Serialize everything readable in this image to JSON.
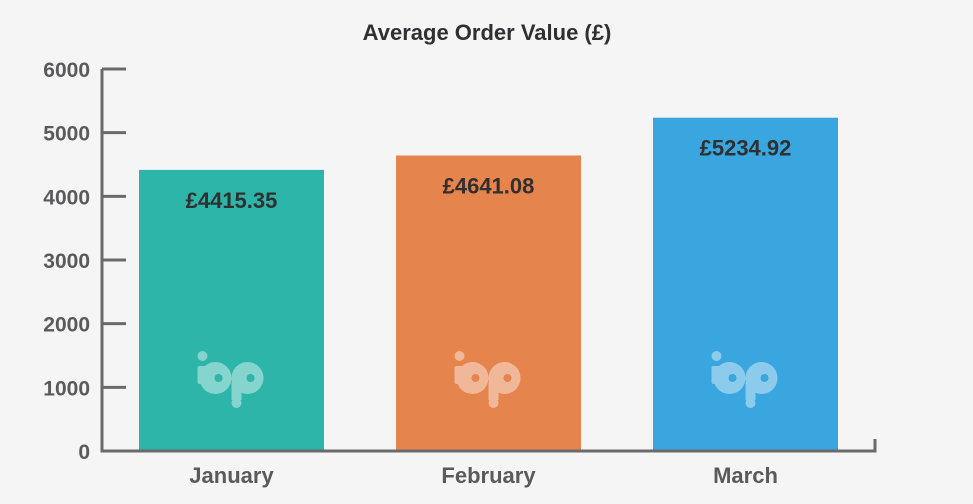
{
  "chart_data": {
    "type": "bar",
    "title": "Average Order Value (£)",
    "xlabel": "",
    "ylabel": "",
    "categories": [
      "January",
      "February",
      "March"
    ],
    "values": [
      4415.35,
      4641.08,
      5234.92
    ],
    "data_labels": [
      "£4415.35",
      "£4641.08",
      "£5234.92"
    ],
    "colors": [
      "#2db5aa",
      "#e6844d",
      "#3aa6df"
    ],
    "ylim": [
      0,
      6000
    ],
    "yticks": [
      "0",
      "1000",
      "2000",
      "3000",
      "4000",
      "5000",
      "6000"
    ],
    "grid": false,
    "legend": "none",
    "watermark_icon": "bp-logo-icon"
  }
}
